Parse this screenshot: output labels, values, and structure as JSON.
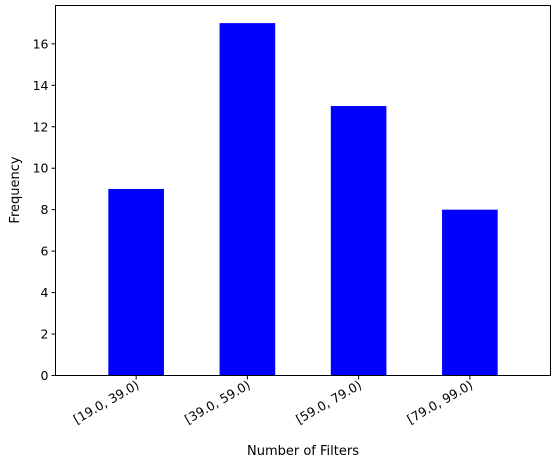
{
  "chart_data": {
    "type": "bar",
    "title": "",
    "xlabel": "Number of Filters",
    "ylabel": "Frequency",
    "categories": [
      "[19.0, 39.0)",
      "[39.0, 59.0)",
      "[59.0, 79.0)",
      "[79.0, 99.0)"
    ],
    "values": [
      9,
      17,
      13,
      8
    ],
    "ylim": [
      0,
      17.85
    ],
    "yticks": [
      0,
      2,
      4,
      6,
      8,
      10,
      12,
      14,
      16
    ],
    "bar_color": "#0000ff",
    "grid": false,
    "legend": "none"
  }
}
